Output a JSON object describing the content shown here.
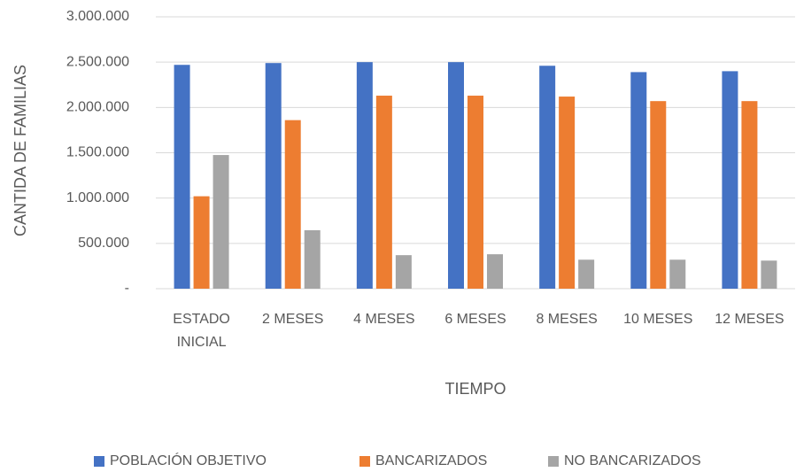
{
  "chart_data": {
    "type": "bar",
    "x_label": "TIEMPO",
    "y_label": "CANTIDA DE FAMILIAS",
    "categories": [
      "ESTADO INICIAL",
      "2 MESES",
      "4 MESES",
      "6 MESES",
      "8 MESES",
      "10 MESES",
      "12 MESES"
    ],
    "series": [
      {
        "name": "POBLACIÓN OBJETIVO",
        "color": "#4472c4",
        "values": [
          2470000,
          2490000,
          2500000,
          2500000,
          2460000,
          2390000,
          2400000
        ]
      },
      {
        "name": "BANCARIZADOS",
        "color": "#ed7d31",
        "values": [
          1020000,
          1860000,
          2130000,
          2130000,
          2120000,
          2070000,
          2070000
        ]
      },
      {
        "name": "NO BANCARIZADOS",
        "color": "#a5a5a5",
        "values": [
          1475000,
          645000,
          370000,
          380000,
          320000,
          320000,
          310000
        ]
      }
    ],
    "ylim": [
      0,
      3000000
    ],
    "yticks": [
      {
        "value": 0,
        "label": "-"
      },
      {
        "value": 500000,
        "label": "500.000"
      },
      {
        "value": 1000000,
        "label": "1.000.000"
      },
      {
        "value": 1500000,
        "label": "1.500.000"
      },
      {
        "value": 2000000,
        "label": "2.000.000"
      },
      {
        "value": 2500000,
        "label": "2.500.000"
      },
      {
        "value": 3000000,
        "label": "3.000.000"
      }
    ],
    "grid": true,
    "legend": "bottom"
  }
}
